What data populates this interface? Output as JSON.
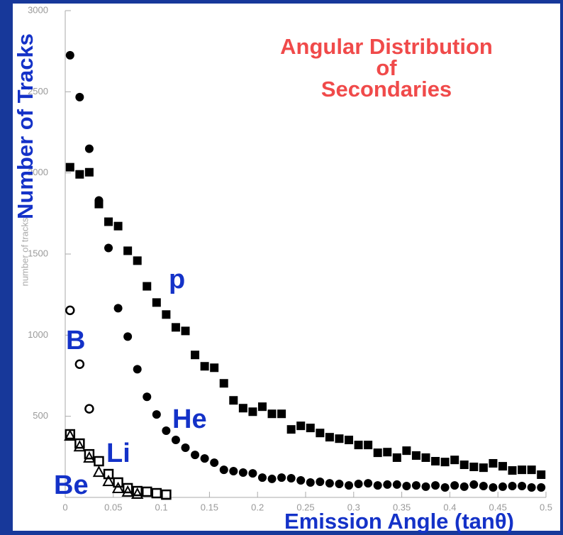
{
  "chart_data": {
    "type": "scatter",
    "title": "Angular Distribution\nof\nSecondaries",
    "xlabel": "Emission Angle (tanθ)",
    "ylabel": "Number of Tracks",
    "annotations": [
      "number of tracks"
    ],
    "xlim": [
      0,
      0.5
    ],
    "ylim": [
      0,
      3000
    ],
    "xticks": [
      0,
      0.05,
      0.1,
      0.15,
      0.2,
      0.25,
      0.3,
      0.35,
      0.4,
      0.45,
      0.5
    ],
    "yticks": [
      500,
      1000,
      1500,
      2000,
      2500,
      3000
    ],
    "series": [
      {
        "name": "p",
        "color": "#000000",
        "marker": "square",
        "x": [
          0.005,
          0.015,
          0.025,
          0.035,
          0.045,
          0.055,
          0.065,
          0.075,
          0.085,
          0.095,
          0.105,
          0.115,
          0.125,
          0.135,
          0.145,
          0.155,
          0.165,
          0.175,
          0.185,
          0.195,
          0.205,
          0.215,
          0.225,
          0.235,
          0.245,
          0.255,
          0.265,
          0.275,
          0.285,
          0.295,
          0.305,
          0.315,
          0.325,
          0.335,
          0.345,
          0.355,
          0.365,
          0.375,
          0.385,
          0.395,
          0.405,
          0.415,
          0.425,
          0.435,
          0.445,
          0.455,
          0.465,
          0.475,
          0.485,
          0.495
        ],
        "values": [
          2035,
          1991,
          2004,
          1808,
          1699,
          1672,
          1520,
          1459,
          1301,
          1201,
          1127,
          1048,
          1026,
          878,
          808,
          799,
          703,
          598,
          550,
          528,
          559,
          515,
          515,
          419,
          441,
          428,
          397,
          371,
          362,
          354,
          323,
          323,
          275,
          279,
          245,
          288,
          258,
          245,
          223,
          218,
          231,
          201,
          188,
          183,
          210,
          192,
          166,
          170,
          170,
          140
        ]
      },
      {
        "name": "He",
        "color": "#000000",
        "marker": "circle",
        "x": [
          0.005,
          0.015,
          0.025,
          0.035,
          0.045,
          0.055,
          0.065,
          0.075,
          0.085,
          0.095,
          0.105,
          0.115,
          0.125,
          0.135,
          0.145,
          0.155,
          0.165,
          0.175,
          0.185,
          0.195,
          0.205,
          0.215,
          0.225,
          0.235,
          0.245,
          0.255,
          0.265,
          0.275,
          0.285,
          0.295,
          0.305,
          0.315,
          0.325,
          0.335,
          0.345,
          0.355,
          0.365,
          0.375,
          0.385,
          0.395,
          0.405,
          0.415,
          0.425,
          0.435,
          0.445,
          0.455,
          0.465,
          0.475,
          0.485,
          0.495
        ],
        "values": [
          2725,
          2467,
          2149,
          1830,
          1537,
          1166,
          991,
          790,
          620,
          511,
          411,
          354,
          306,
          262,
          240,
          214,
          170,
          162,
          153,
          148,
          122,
          114,
          122,
          118,
          105,
          92,
          96,
          87,
          83,
          74,
          83,
          87,
          74,
          79,
          79,
          70,
          74,
          66,
          74,
          61,
          74,
          66,
          79,
          70,
          61,
          66,
          70,
          70,
          61,
          61
        ]
      },
      {
        "name": "B",
        "color": "#000000",
        "marker": "open-circle",
        "x": [
          0.005,
          0.015,
          0.025
        ],
        "values": [
          1153,
          821,
          546
        ]
      },
      {
        "name": "Li",
        "color": "#000000",
        "marker": "triangle",
        "x": [
          0.005,
          0.015,
          0.025,
          0.035,
          0.045,
          0.055,
          0.065,
          0.075
        ],
        "values": [
          380,
          314,
          245,
          157,
          100,
          57,
          35,
          22
        ]
      },
      {
        "name": "Be",
        "color": "#000000",
        "marker": "open-square",
        "x": [
          0.005,
          0.015,
          0.025,
          0.035,
          0.045,
          0.055,
          0.065,
          0.075,
          0.085,
          0.095,
          0.105
        ],
        "values": [
          389,
          332,
          266,
          223,
          144,
          92,
          57,
          39,
          35,
          26,
          17
        ]
      }
    ]
  }
}
